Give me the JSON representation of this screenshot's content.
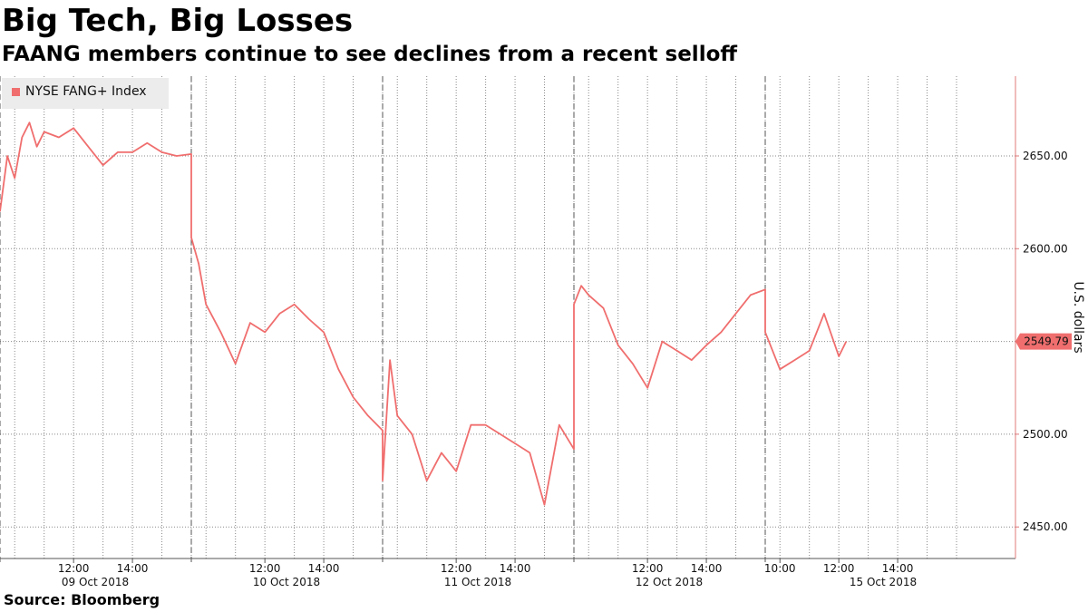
{
  "title": "Big Tech, Big Losses",
  "subtitle": "FAANG members continue to see declines from a recent selloff",
  "source": "Source: Bloomberg",
  "chart_data": {
    "type": "line",
    "title": "Big Tech, Big Losses",
    "subtitle": "FAANG members continue to see declines from a recent selloff",
    "ylabel": "U.S. dollars",
    "xlabel": "",
    "ylim": [
      2433,
      2693
    ],
    "yticks": [
      2450,
      2500,
      2550,
      2600,
      2650
    ],
    "ytick_labels": [
      "2450.00",
      "2500.00",
      "2550.00",
      "2600.00",
      "2650.00"
    ],
    "grid": true,
    "legend_position": "top-left",
    "last_value_label": "2549.79",
    "colors": {
      "series": "#f06e6e",
      "grid": "#888888",
      "label_bg": "#f06e6e"
    },
    "x_axis": {
      "type": "intraday trading time",
      "days": [
        {
          "date_label": "09 Oct 2018",
          "time_ticks": [
            "12:00",
            "14:00"
          ]
        },
        {
          "date_label": "10 Oct 2018",
          "time_ticks": [
            "12:00",
            "14:00"
          ]
        },
        {
          "date_label": "11 Oct 2018",
          "time_ticks": [
            "12:00",
            "14:00"
          ]
        },
        {
          "date_label": "12 Oct 2018",
          "time_ticks": [
            "12:00",
            "14:00"
          ]
        },
        {
          "date_label": "15 Oct 2018",
          "time_ticks": [
            "10:00",
            "12:00",
            "14:00"
          ]
        }
      ]
    },
    "series": [
      {
        "name": "NYSE FANG+ Index",
        "x": [
          "09 Oct 09:30",
          "09 Oct 09:45",
          "09 Oct 10:00",
          "09 Oct 10:15",
          "09 Oct 10:30",
          "09 Oct 10:45",
          "09 Oct 11:00",
          "09 Oct 11:30",
          "09 Oct 12:00",
          "09 Oct 12:30",
          "09 Oct 13:00",
          "09 Oct 13:30",
          "09 Oct 14:00",
          "09 Oct 14:30",
          "09 Oct 15:00",
          "09 Oct 15:30",
          "09 Oct 16:00",
          "10 Oct 09:30",
          "10 Oct 09:45",
          "10 Oct 10:00",
          "10 Oct 10:30",
          "10 Oct 11:00",
          "10 Oct 11:30",
          "10 Oct 12:00",
          "10 Oct 12:30",
          "10 Oct 13:00",
          "10 Oct 13:30",
          "10 Oct 14:00",
          "10 Oct 14:30",
          "10 Oct 15:00",
          "10 Oct 15:30",
          "10 Oct 16:00",
          "11 Oct 09:30",
          "11 Oct 09:45",
          "11 Oct 10:00",
          "11 Oct 10:30",
          "11 Oct 11:00",
          "11 Oct 11:30",
          "11 Oct 12:00",
          "11 Oct 12:30",
          "11 Oct 13:00",
          "11 Oct 13:30",
          "11 Oct 14:00",
          "11 Oct 14:30",
          "11 Oct 15:00",
          "11 Oct 15:30",
          "11 Oct 16:00",
          "12 Oct 09:30",
          "12 Oct 09:45",
          "12 Oct 10:00",
          "12 Oct 10:30",
          "12 Oct 11:00",
          "12 Oct 11:30",
          "12 Oct 12:00",
          "12 Oct 12:30",
          "12 Oct 13:00",
          "12 Oct 13:30",
          "12 Oct 14:00",
          "12 Oct 14:30",
          "12 Oct 15:00",
          "12 Oct 15:30",
          "12 Oct 16:00",
          "15 Oct 09:30",
          "15 Oct 09:45",
          "15 Oct 10:00",
          "15 Oct 10:30",
          "15 Oct 11:00",
          "15 Oct 11:30",
          "15 Oct 12:00",
          "15 Oct 12:15"
        ],
        "values": [
          2620,
          2650,
          2638,
          2660,
          2668,
          2655,
          2663,
          2660,
          2665,
          2655,
          2645,
          2652,
          2652,
          2657,
          2652,
          2650,
          2651,
          2606,
          2592,
          2570,
          2555,
          2538,
          2560,
          2555,
          2565,
          2570,
          2562,
          2555,
          2535,
          2520,
          2510,
          2502,
          2475,
          2540,
          2510,
          2500,
          2475,
          2490,
          2480,
          2505,
          2505,
          2500,
          2495,
          2490,
          2462,
          2505,
          2492,
          2570,
          2580,
          2575,
          2568,
          2548,
          2538,
          2525,
          2550,
          2545,
          2540,
          2548,
          2555,
          2565,
          2575,
          2578,
          2555,
          2545,
          2535,
          2540,
          2545,
          2565,
          2542,
          2550
        ]
      }
    ]
  }
}
